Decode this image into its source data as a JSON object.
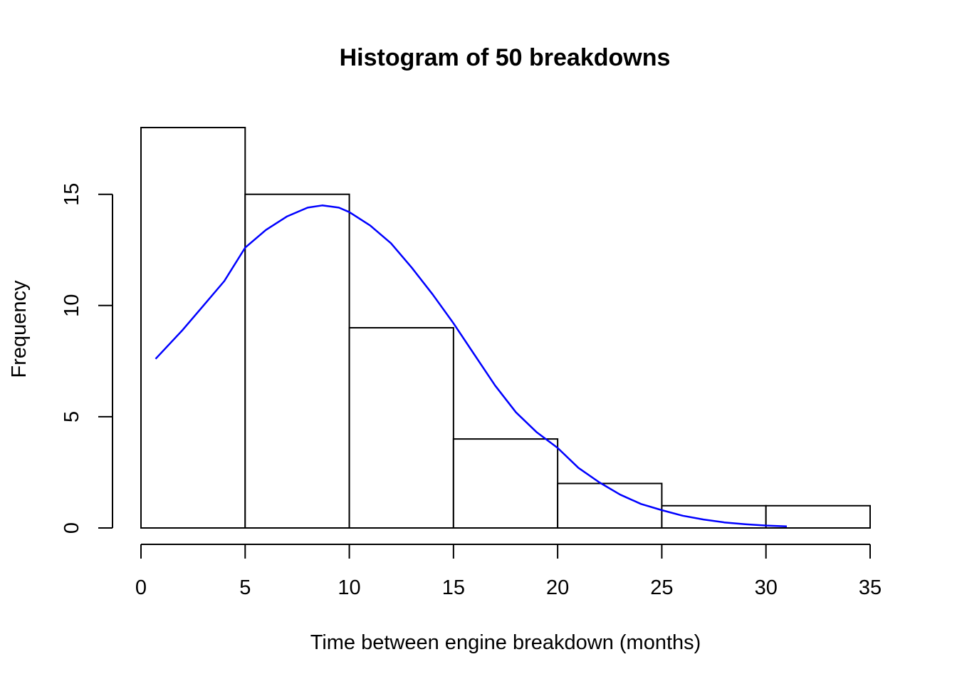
{
  "chart_data": {
    "type": "bar",
    "title": "Histogram of 50 breakdowns",
    "xlabel": "Time between engine breakdown (months)",
    "ylabel": "Frequency",
    "bins": [
      [
        0,
        5
      ],
      [
        5,
        10
      ],
      [
        10,
        15
      ],
      [
        15,
        20
      ],
      [
        20,
        25
      ],
      [
        25,
        30
      ],
      [
        30,
        35
      ]
    ],
    "values": [
      18,
      15,
      9,
      4,
      2,
      1,
      1
    ],
    "xlim": [
      0,
      35
    ],
    "ylim": [
      0,
      18
    ],
    "xticks": [
      0,
      5,
      10,
      15,
      20,
      25,
      30,
      35
    ],
    "yticks": [
      0,
      5,
      10,
      15
    ],
    "grid": false,
    "curve": {
      "color": "#0000ff",
      "points": [
        [
          0.7,
          7.6
        ],
        [
          2,
          8.9
        ],
        [
          3,
          10.0
        ],
        [
          4,
          11.1
        ],
        [
          5,
          12.6
        ],
        [
          6,
          13.4
        ],
        [
          7,
          14.0
        ],
        [
          8,
          14.4
        ],
        [
          8.7,
          14.5
        ],
        [
          9.5,
          14.4
        ],
        [
          10,
          14.2
        ],
        [
          11,
          13.6
        ],
        [
          12,
          12.8
        ],
        [
          13,
          11.7
        ],
        [
          14,
          10.5
        ],
        [
          15,
          9.2
        ],
        [
          16,
          7.8
        ],
        [
          17,
          6.4
        ],
        [
          18,
          5.2
        ],
        [
          19,
          4.3
        ],
        [
          20,
          3.6
        ],
        [
          21,
          2.7
        ],
        [
          22,
          2.05
        ],
        [
          23,
          1.5
        ],
        [
          24,
          1.08
        ],
        [
          25,
          0.8
        ],
        [
          26,
          0.55
        ],
        [
          27,
          0.38
        ],
        [
          28,
          0.25
        ],
        [
          29,
          0.17
        ],
        [
          30,
          0.11
        ],
        [
          31,
          0.07
        ]
      ]
    }
  }
}
